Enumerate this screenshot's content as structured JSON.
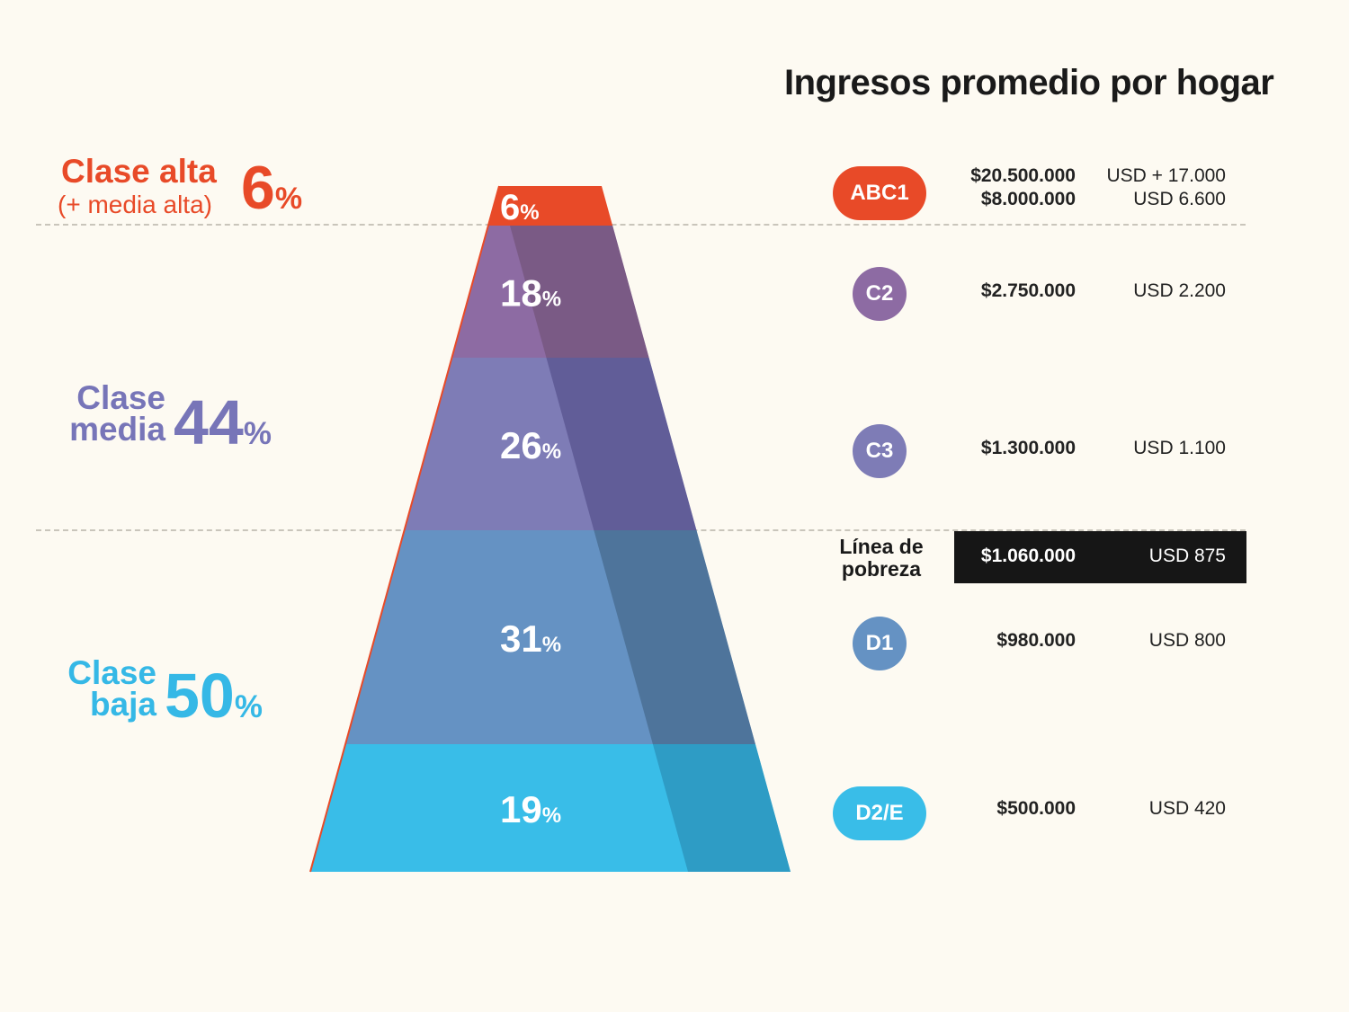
{
  "title": "Ingresos promedio por hogar",
  "colors": {
    "alta": "#e84a28",
    "c2": "#8d6ba3",
    "c3": "#7e7cb6",
    "d1": "#6592c3",
    "d2e": "#39bde8",
    "media_label": "#7775b8",
    "baja_label": "#35b8e6"
  },
  "class_labels": {
    "alta": {
      "text": "Clase alta",
      "sub": "(+ media alta)",
      "pct": "6",
      "pct_sign": "%"
    },
    "media": {
      "line1": "Clase",
      "line2": "media",
      "pct": "44",
      "pct_sign": "%"
    },
    "baja": {
      "line1": "Clase",
      "line2": "baja",
      "pct": "50",
      "pct_sign": "%"
    }
  },
  "chart_data": {
    "type": "pyramid",
    "categories": [
      "ABC1",
      "C2",
      "C3",
      "D1",
      "D2/E"
    ],
    "values": [
      6,
      18,
      26,
      31,
      19
    ],
    "value_suffix": "%",
    "groups": [
      {
        "name": "Clase alta",
        "sub": "(+ media alta)",
        "value": 6
      },
      {
        "name": "Clase media",
        "value": 44
      },
      {
        "name": "Clase baja",
        "value": 50
      }
    ]
  },
  "income": [
    {
      "segment": "ABC1",
      "ars": [
        "$20.500.000",
        "$8.000.000"
      ],
      "usd": [
        "USD + 17.000",
        "USD 6.600"
      ]
    },
    {
      "segment": "C2",
      "ars": [
        "$2.750.000"
      ],
      "usd": [
        "USD 2.200"
      ]
    },
    {
      "segment": "C3",
      "ars": [
        "$1.300.000"
      ],
      "usd": [
        "USD 1.100"
      ]
    },
    {
      "segment": "D1",
      "ars": [
        "$980.000"
      ],
      "usd": [
        "USD 800"
      ]
    },
    {
      "segment": "D2/E",
      "ars": [
        "$500.000"
      ],
      "usd": [
        "USD 420"
      ]
    }
  ],
  "poverty_line": {
    "label_line1": "Línea de",
    "label_line2": "pobreza",
    "ars": "$1.060.000",
    "usd": "USD 875"
  }
}
